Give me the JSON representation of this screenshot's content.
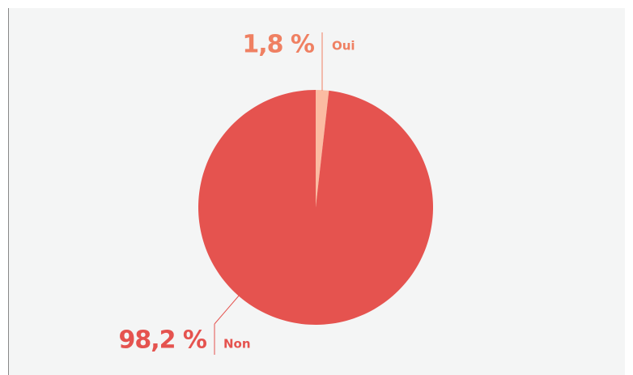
{
  "chart_data": {
    "type": "pie",
    "categories": [
      "Oui",
      "Non"
    ],
    "values": [
      1.8,
      98.2
    ],
    "value_labels": [
      "1,8 %",
      "98,2 %"
    ],
    "colors": [
      "#fbbba2",
      "#e5534f"
    ],
    "label_colors": [
      "#ef8062",
      "#e5534f"
    ]
  }
}
